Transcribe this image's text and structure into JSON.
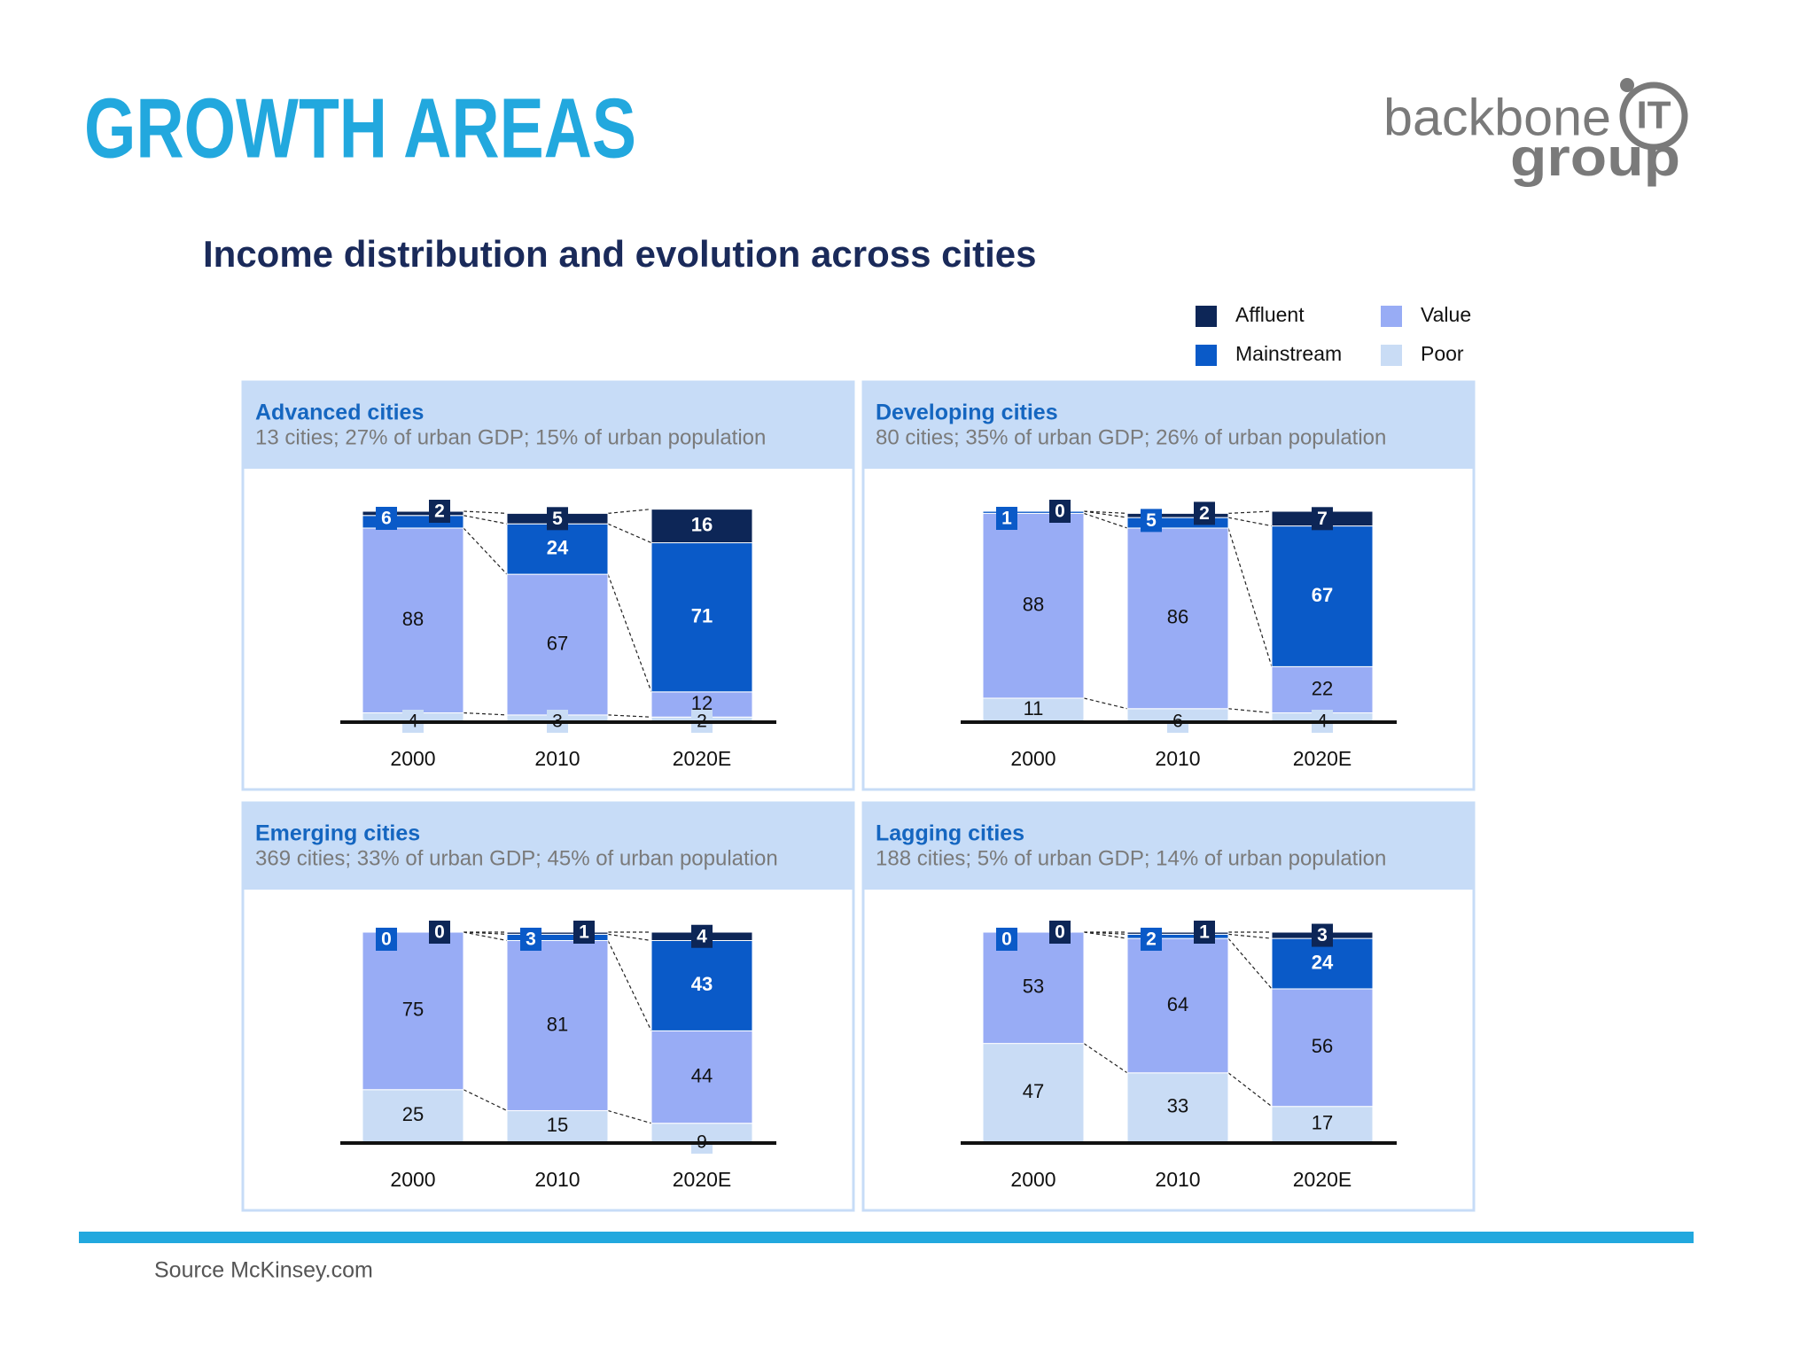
{
  "header": {
    "title": "GROWTH AREAS",
    "logo": {
      "brand": "backbone",
      "mark": "IT",
      "suffix": "group"
    }
  },
  "subtitle": "Income distribution and evolution across cities",
  "legend_position": "top-right",
  "chart_data": [
    {
      "type": "bar",
      "stacked": true,
      "title": "Advanced cities",
      "subtitle": "13 cities;  27% of urban GDP; 15% of urban population",
      "categories": [
        "2000",
        "2010",
        "2020E"
      ],
      "ylim": [
        0,
        100
      ],
      "series": [
        {
          "name": "Affluent",
          "color": "#0d2657",
          "values": [
            2,
            5,
            16
          ]
        },
        {
          "name": "Mainstream",
          "color": "#0a5ac8",
          "values": [
            6,
            24,
            71
          ]
        },
        {
          "name": "Value",
          "color": "#98acf5",
          "values": [
            88,
            67,
            12
          ]
        },
        {
          "name": "Poor",
          "color": "#c9dcf5",
          "values": [
            4,
            3,
            2
          ]
        }
      ]
    },
    {
      "type": "bar",
      "stacked": true,
      "title": "Developing cities",
      "subtitle": "80 cities;  35% of urban GDP; 26% of urban population",
      "categories": [
        "2000",
        "2010",
        "2020E"
      ],
      "ylim": [
        0,
        100
      ],
      "series": [
        {
          "name": "Affluent",
          "color": "#0d2657",
          "values": [
            0,
            2,
            7
          ]
        },
        {
          "name": "Mainstream",
          "color": "#0a5ac8",
          "values": [
            1,
            5,
            67
          ]
        },
        {
          "name": "Value",
          "color": "#98acf5",
          "values": [
            88,
            86,
            22
          ]
        },
        {
          "name": "Poor",
          "color": "#c9dcf5",
          "values": [
            11,
            6,
            4
          ]
        }
      ]
    },
    {
      "type": "bar",
      "stacked": true,
      "title": "Emerging cities",
      "subtitle": "369 cities;  33% of urban GDP; 45% of urban population",
      "categories": [
        "2000",
        "2010",
        "2020E"
      ],
      "ylim": [
        0,
        100
      ],
      "series": [
        {
          "name": "Affluent",
          "color": "#0d2657",
          "values": [
            0,
            1,
            4
          ]
        },
        {
          "name": "Mainstream",
          "color": "#0a5ac8",
          "values": [
            0,
            3,
            43
          ]
        },
        {
          "name": "Value",
          "color": "#98acf5",
          "values": [
            75,
            81,
            44
          ]
        },
        {
          "name": "Poor",
          "color": "#c9dcf5",
          "values": [
            25,
            15,
            9
          ]
        }
      ]
    },
    {
      "type": "bar",
      "stacked": true,
      "title": "Lagging cities",
      "subtitle": "188 cities;  5% of urban GDP; 14% of urban population",
      "categories": [
        "2000",
        "2010",
        "2020E"
      ],
      "ylim": [
        0,
        100
      ],
      "series": [
        {
          "name": "Affluent",
          "color": "#0d2657",
          "values": [
            0,
            1,
            3
          ]
        },
        {
          "name": "Mainstream",
          "color": "#0a5ac8",
          "values": [
            0,
            2,
            24
          ]
        },
        {
          "name": "Value",
          "color": "#98acf5",
          "values": [
            53,
            64,
            56
          ]
        },
        {
          "name": "Poor",
          "color": "#c9dcf5",
          "values": [
            47,
            33,
            17
          ]
        }
      ]
    }
  ],
  "footer": {
    "source": "Source McKinsey.com"
  }
}
